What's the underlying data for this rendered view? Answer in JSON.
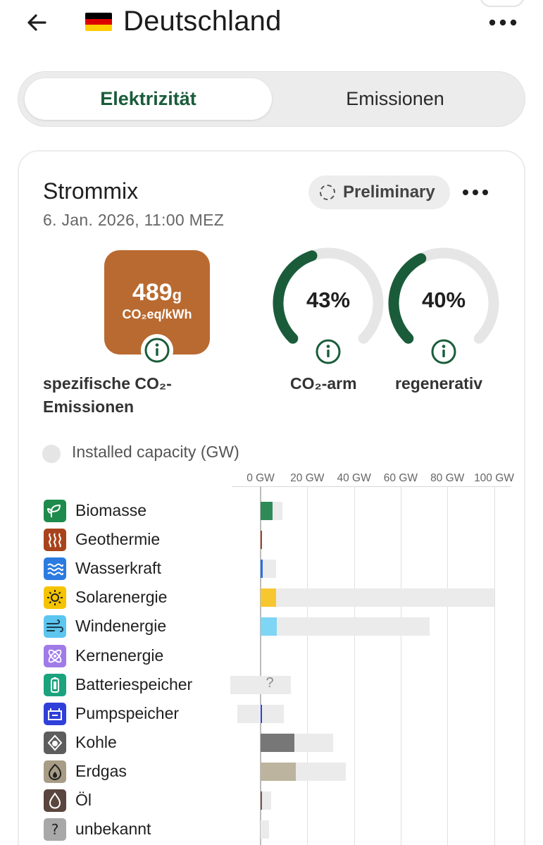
{
  "header": {
    "title": "Deutschland",
    "flag_colors": [
      "#000000",
      "#dd0000",
      "#ffce00"
    ]
  },
  "tabs": {
    "active": "Elektrizität",
    "inactive": "Emissionen"
  },
  "card": {
    "title": "Strommix",
    "date": "6. Jan. 2026, 11:00 MEZ",
    "badge": "Preliminary"
  },
  "metrics": {
    "co2_value": "489",
    "co2_value_unit": "g",
    "co2_unit": "CO₂eq/kWh",
    "co2_label_line1": "spezifische CO₂-",
    "co2_label_line2": "Emissionen",
    "co2_color": "#b96a31",
    "low_carbon_percent": "43%",
    "low_carbon_fraction": 0.43,
    "low_carbon_label": "CO₂-arm",
    "renewable_percent": "40%",
    "renewable_fraction": 0.4,
    "renewable_label": "regenerativ",
    "gauge_color": "#1a5c3a"
  },
  "capacity_toggle": {
    "label": "Installed capacity (GW)",
    "checked": false
  },
  "chart_data": {
    "type": "bar",
    "xlabel": "",
    "xlim": [
      -13,
      100
    ],
    "ticks": [
      "0 GW",
      "20 GW",
      "40 GW",
      "60 GW",
      "80 GW",
      "100 GW"
    ],
    "tick_values": [
      0,
      20,
      40,
      60,
      80,
      100
    ],
    "series": [
      {
        "name": "production",
        "values": [
          5,
          0.3,
          1,
          6.5,
          7,
          0,
          0,
          0.5,
          14.5,
          15,
          0.5,
          0
        ]
      },
      {
        "name": "capacity",
        "values": [
          9.5,
          0.5,
          6.5,
          100,
          72.5,
          0,
          13,
          10,
          31,
          36.5,
          4.5,
          3.5
        ]
      },
      {
        "name": "capacity_negative",
        "values": [
          0,
          0,
          0,
          0,
          0,
          0,
          -13,
          -10,
          0,
          0,
          0,
          0
        ]
      }
    ],
    "categories": [
      "Biomasse",
      "Geothermie",
      "Wasserkraft",
      "Solarenergie",
      "Windenergie",
      "Kernenergie",
      "Batteriespeicher",
      "Pumpspeicher",
      "Kohle",
      "Erdgas",
      "Öl",
      "unbekannt"
    ],
    "unknown_marker": "?"
  },
  "sources": [
    {
      "name": "Biomasse",
      "icon": "leaf-icon",
      "icon_bg": "#1e8a4c",
      "bar_color": "#2e8b57"
    },
    {
      "name": "Geothermie",
      "icon": "heat-waves-icon",
      "icon_bg": "#a8441d",
      "bar_color": "#a8441d"
    },
    {
      "name": "Wasserkraft",
      "icon": "water-waves-icon",
      "icon_bg": "#2b7be0",
      "bar_color": "#2b6fe0"
    },
    {
      "name": "Solarenergie",
      "icon": "sun-icon",
      "icon_bg": "#f5c400",
      "bar_color": "#f7c730"
    },
    {
      "name": "Windenergie",
      "icon": "wind-icon",
      "icon_bg": "#5cc6ef",
      "bar_color": "#7fd5f4"
    },
    {
      "name": "Kernenergie",
      "icon": "atom-icon",
      "icon_bg": "#a07be8",
      "bar_color": "#a07be8"
    },
    {
      "name": "Batteriespeicher",
      "icon": "battery-icon",
      "icon_bg": "#1aa37c",
      "bar_color": "#1aa37c"
    },
    {
      "name": "Pumpspeicher",
      "icon": "pump-storage-icon",
      "icon_bg": "#2f3fd9",
      "bar_color": "#2f3fd9"
    },
    {
      "name": "Kohle",
      "icon": "coal-icon",
      "icon_bg": "#5d5d5d",
      "bar_color": "#777777"
    },
    {
      "name": "Erdgas",
      "icon": "gas-flame-icon",
      "icon_bg": "#a89c86",
      "bar_color": "#bcb49e"
    },
    {
      "name": "Öl",
      "icon": "oil-drop-icon",
      "icon_bg": "#5a463e",
      "bar_color": "#7a5a4e"
    },
    {
      "name": "unbekannt",
      "icon": "question-icon",
      "icon_bg": "#a8a8a8",
      "bar_color": "#cccccc"
    }
  ]
}
